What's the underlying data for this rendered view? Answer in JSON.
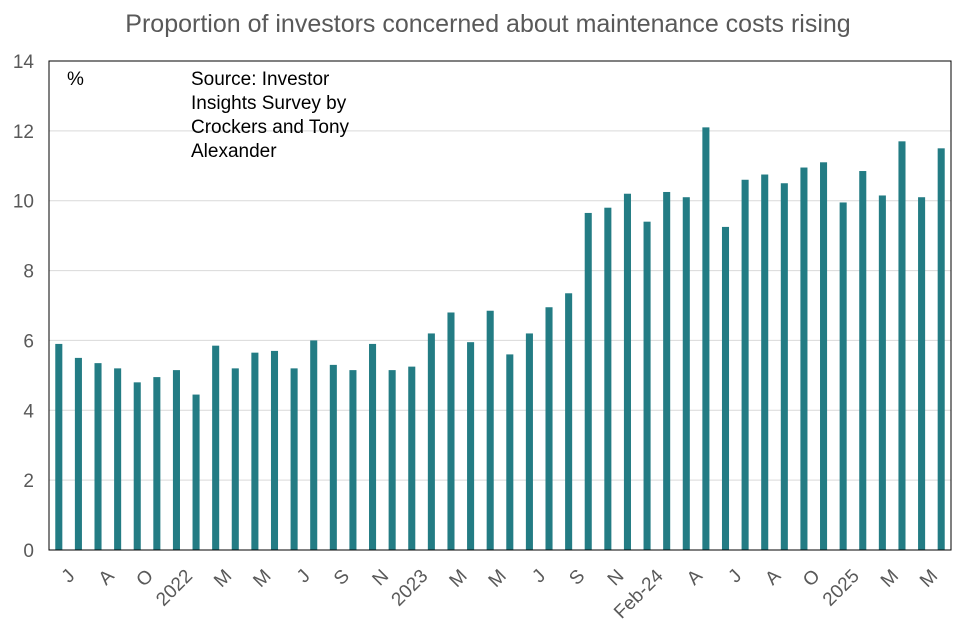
{
  "chart_data": {
    "type": "bar",
    "title": "Proportion of investors concerned about maintenance costs rising",
    "unit_label": "%",
    "source_note": "Source: Investor Insights Survey by Crockers and Tony Alexander",
    "ylim": [
      0,
      14
    ],
    "y_ticks": [
      0,
      2,
      4,
      6,
      8,
      10,
      12,
      14
    ],
    "grid": true,
    "bar_color": "#237C84",
    "x_tick_labels": [
      "J",
      "A",
      "O",
      "2022",
      "M",
      "M",
      "J",
      "S",
      "N",
      "2023",
      "M",
      "M",
      "J",
      "S",
      "N",
      "Feb-24",
      "A",
      "J",
      "A",
      "O",
      "2025",
      "M",
      "M"
    ],
    "values": [
      5.9,
      5.5,
      5.35,
      5.2,
      4.8,
      4.95,
      5.15,
      4.45,
      5.85,
      5.2,
      5.65,
      5.7,
      5.2,
      6.0,
      5.3,
      5.15,
      5.9,
      5.15,
      5.25,
      6.2,
      6.8,
      5.95,
      6.85,
      5.6,
      6.2,
      6.95,
      7.35,
      9.65,
      9.8,
      10.2,
      9.4,
      10.25,
      10.1,
      12.1,
      9.25,
      10.6,
      10.75,
      10.5,
      10.95,
      11.1,
      9.95,
      10.85,
      10.15,
      11.7,
      10.1,
      11.5
    ]
  }
}
